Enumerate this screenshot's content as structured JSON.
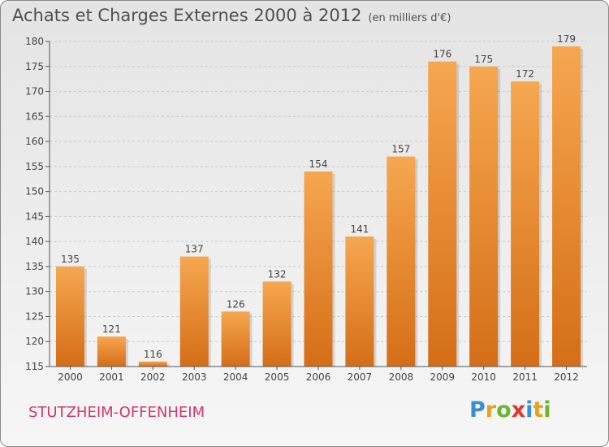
{
  "header": {
    "title": "Achats et Charges Externes 2000 à 2012",
    "unit": "(en milliers d'€)"
  },
  "footer": {
    "city": "STUTZHEIM-OFFENHEIM",
    "logo": {
      "letters": [
        "P",
        "r",
        "o",
        "x",
        "i",
        "t",
        "i"
      ],
      "colors": [
        "#3a8fd1",
        "#e8a21a",
        "#6bb531",
        "#e4342b",
        "#3a8fd1",
        "#e8a21a",
        "#6bb531"
      ]
    }
  },
  "colors": {
    "bar_light": "#f6a750",
    "bar_dark": "#d46e17",
    "axis": "#555555",
    "grid": "#c8c8c8"
  },
  "chart_data": {
    "type": "bar",
    "title": "Achats et Charges Externes 2000 à 2012",
    "subtitle": "(en milliers d'€)",
    "xlabel": "",
    "ylabel": "",
    "categories": [
      "2000",
      "2001",
      "2002",
      "2003",
      "2004",
      "2005",
      "2006",
      "2007",
      "2008",
      "2009",
      "2010",
      "2011",
      "2012"
    ],
    "values": [
      135,
      121,
      116,
      137,
      126,
      132,
      154,
      141,
      157,
      176,
      175,
      172,
      179
    ],
    "ylim": [
      115,
      180
    ],
    "yticks": [
      115,
      120,
      125,
      130,
      135,
      140,
      145,
      150,
      155,
      160,
      165,
      170,
      175,
      180
    ],
    "grid": true,
    "data_labels": true
  }
}
